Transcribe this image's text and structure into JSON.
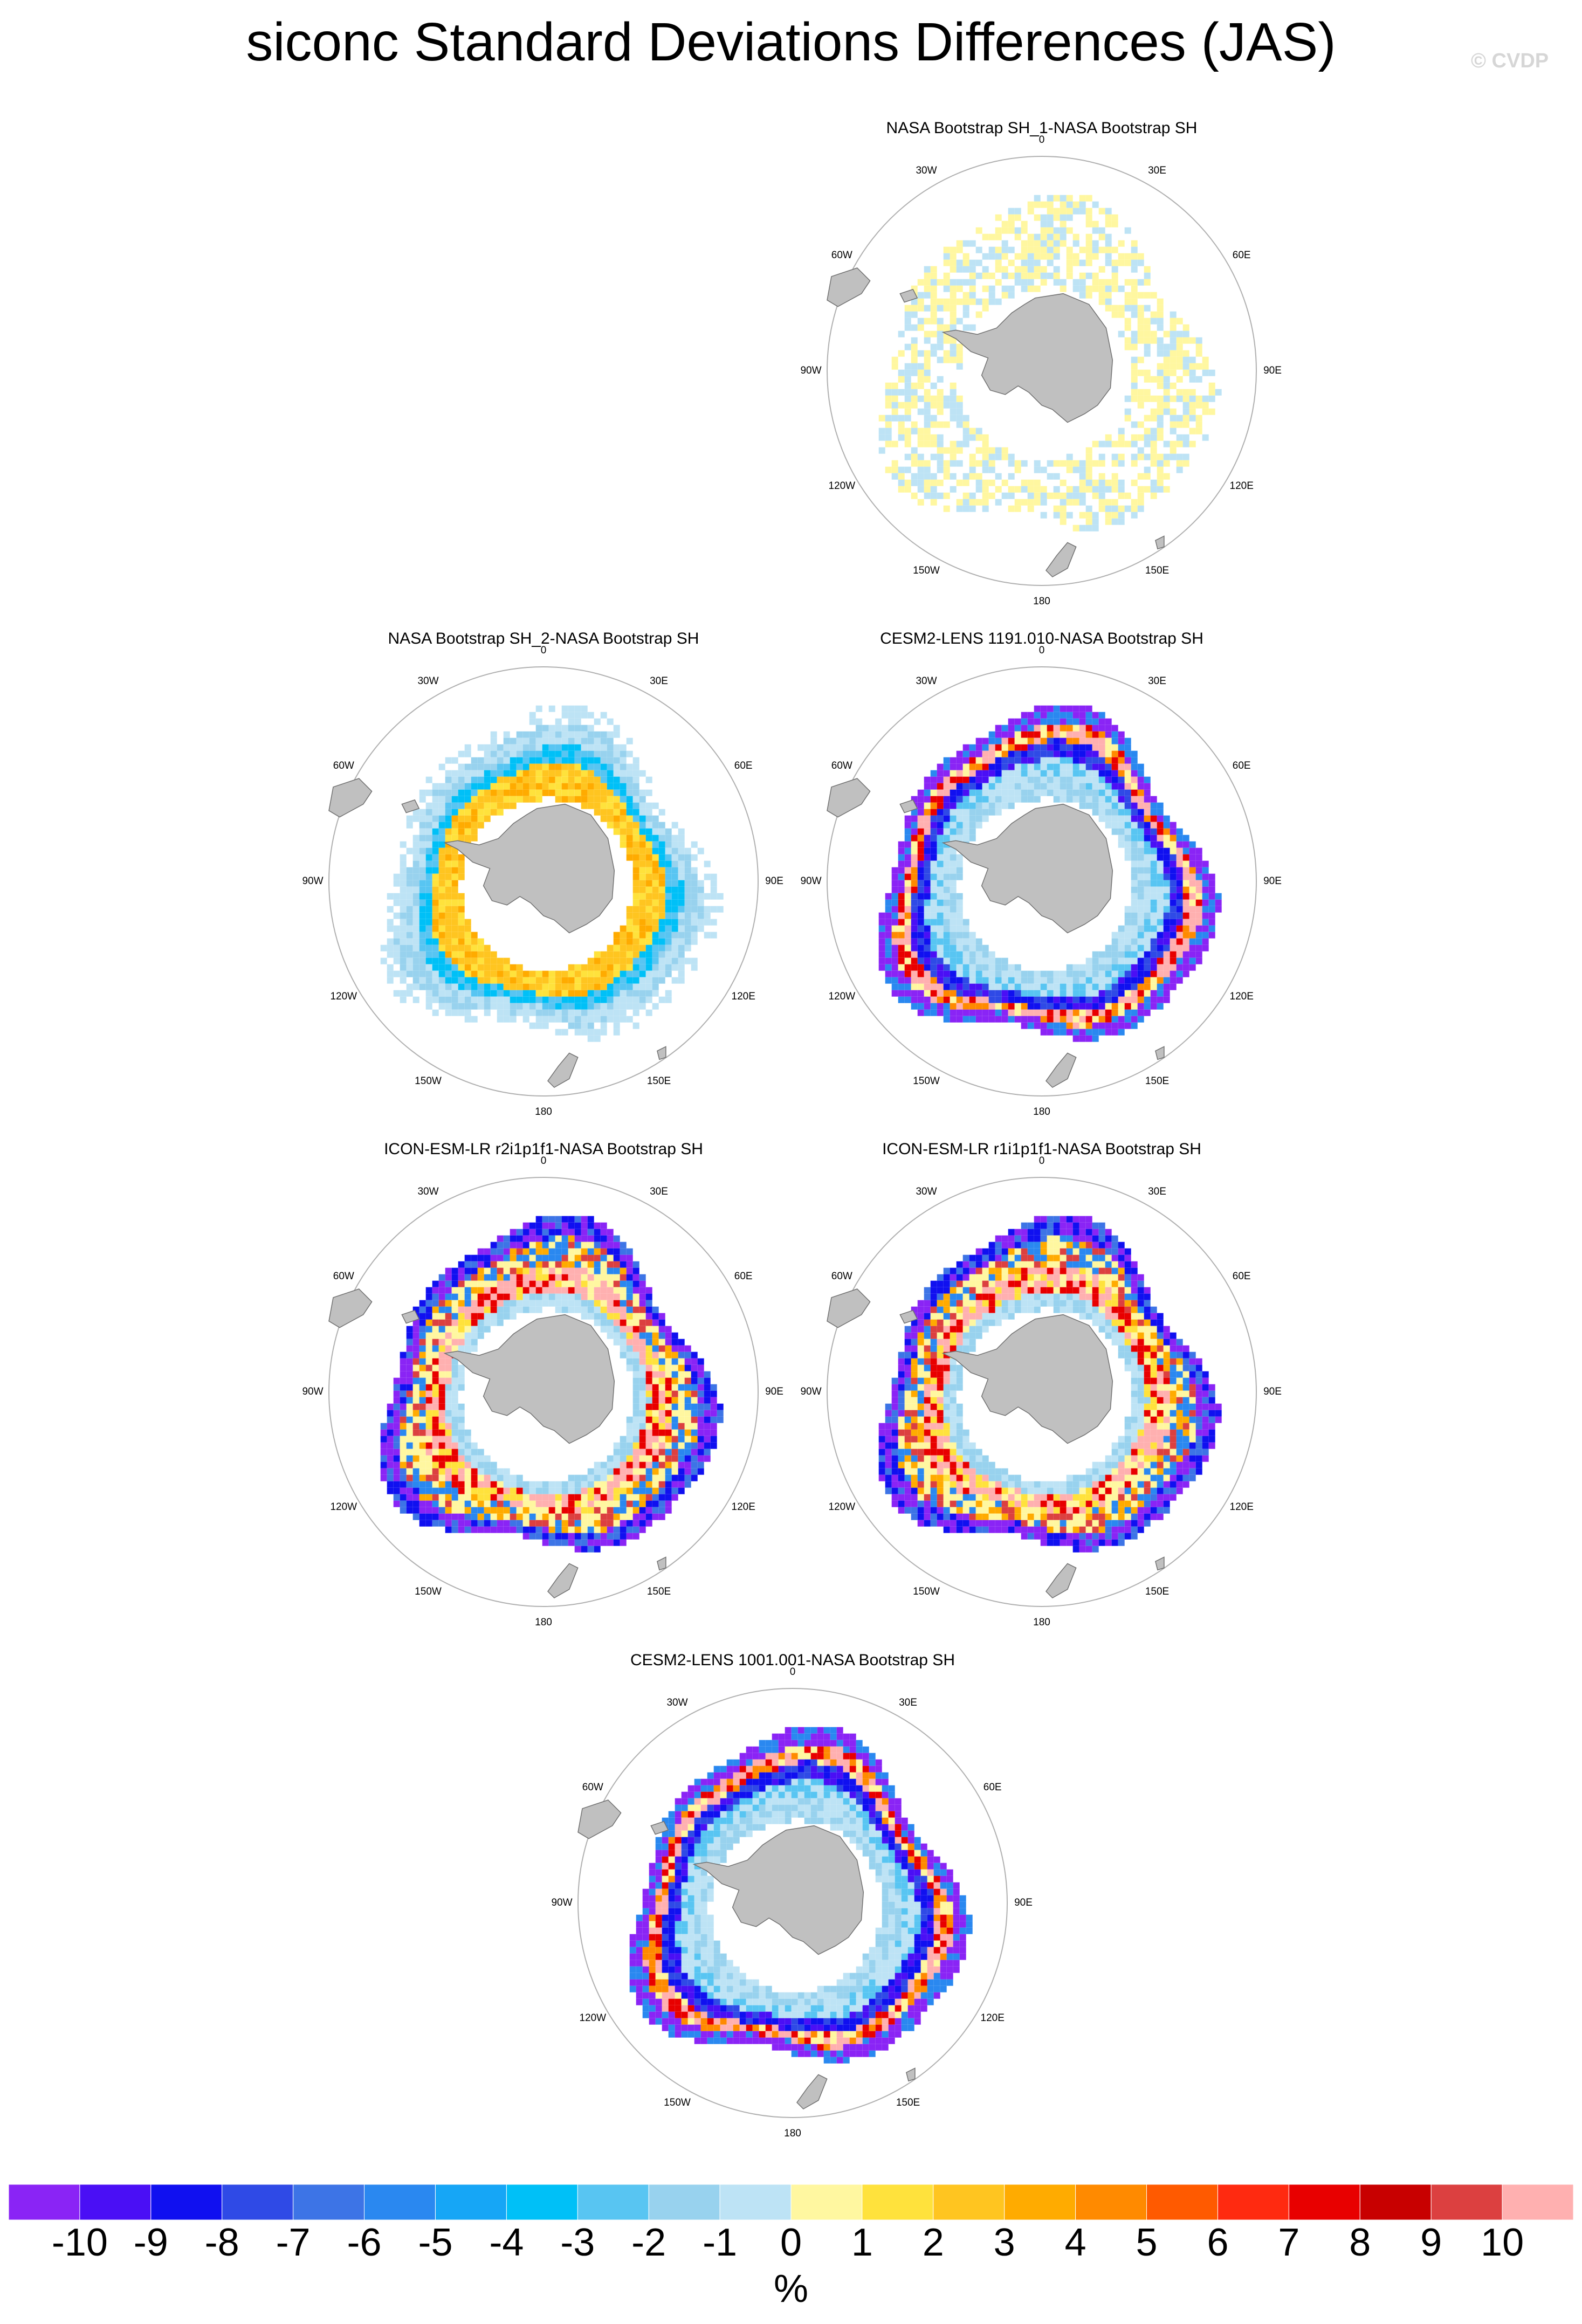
{
  "title": "siconc Standard Deviations Differences (JAS)",
  "watermark": "© CVDP",
  "chart_data": {
    "type": "heatmap",
    "projection": "south polar stereographic",
    "panels": [
      {
        "title": "NASA Bootstrap SH_1-NASA Bootstrap SH",
        "pattern": "weak"
      },
      {
        "title": "NASA Bootstrap SH_2-NASA Bootstrap SH",
        "pattern": "ring_positive_inner_negative_outer"
      },
      {
        "title": "CESM2-LENS 1191.010-NASA Bootstrap SH",
        "pattern": "strong_mixed"
      },
      {
        "title": "ICON-ESM-LR r2i1p1f1-NASA Bootstrap SH",
        "pattern": "strong_positive_mixed"
      },
      {
        "title": "ICON-ESM-LR r1i1p1f1-NASA Bootstrap SH",
        "pattern": "strong_positive_mixed"
      },
      {
        "title": "CESM2-LENS 1001.001-NASA Bootstrap SH",
        "pattern": "strong_mixed"
      }
    ],
    "longitude_labels": [
      "0",
      "30E",
      "60E",
      "90E",
      "120E",
      "150E",
      "180",
      "150W",
      "120W",
      "90W",
      "60W",
      "30W"
    ],
    "colorbar": {
      "unit": "%",
      "tick_labels": [
        "-10",
        "-9",
        "-8",
        "-7",
        "-6",
        "-5",
        "-4",
        "-3",
        "-2",
        "-1",
        "0",
        "1",
        "2",
        "3",
        "4",
        "5",
        "6",
        "7",
        "8",
        "9",
        "10"
      ],
      "colors": [
        "#8a24f5",
        "#4a0ff5",
        "#1010f0",
        "#2f4ae6",
        "#3d74e6",
        "#2a88f0",
        "#16a6f6",
        "#00c0f7",
        "#58c5f2",
        "#98d2ee",
        "#bde3f5",
        "#fff7a0",
        "#ffe23c",
        "#ffc520",
        "#ffab00",
        "#ff8a00",
        "#ff5a00",
        "#ff2a10",
        "#e80000",
        "#c80000",
        "#dc4040",
        "#ffb0b0"
      ]
    }
  }
}
